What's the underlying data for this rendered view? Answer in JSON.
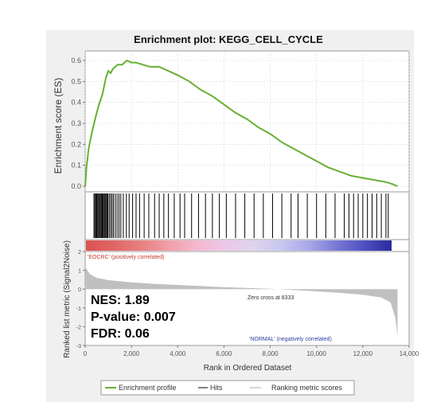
{
  "chart_data": {
    "type": "line",
    "title": "Enrichment plot: KEGG_CELL_CYCLE",
    "xlabel": "Rank in Ordered Dataset",
    "xlim": [
      0,
      14000
    ],
    "x_ticks": [
      0,
      2000,
      4000,
      6000,
      8000,
      10000,
      12000,
      14000
    ],
    "x_tick_labels": [
      "0",
      "2,000",
      "4,000",
      "6,000",
      "8,000",
      "10,000",
      "12,000",
      "14,000"
    ],
    "es_panel": {
      "ylabel": "Enrichment score (ES)",
      "ylim": [
        0,
        0.6
      ],
      "y_ticks": [
        0.0,
        0.1,
        0.2,
        0.3,
        0.4,
        0.5,
        0.6
      ],
      "y_tick_labels": [
        "0.0",
        "0.1",
        "0.2",
        "0.3",
        "0.4",
        "0.5",
        "0.6"
      ],
      "grid": true,
      "series": [
        {
          "name": "Enrichment profile",
          "color": "#66b032",
          "points": [
            [
              0,
              0.0
            ],
            [
              60,
              0.09
            ],
            [
              150,
              0.18
            ],
            [
              300,
              0.26
            ],
            [
              450,
              0.33
            ],
            [
              600,
              0.39
            ],
            [
              750,
              0.44
            ],
            [
              900,
              0.52
            ],
            [
              1000,
              0.55
            ],
            [
              1100,
              0.54
            ],
            [
              1200,
              0.56
            ],
            [
              1400,
              0.58
            ],
            [
              1600,
              0.58
            ],
            [
              1800,
              0.6
            ],
            [
              2000,
              0.59
            ],
            [
              2200,
              0.59
            ],
            [
              2500,
              0.58
            ],
            [
              2800,
              0.57
            ],
            [
              3200,
              0.57
            ],
            [
              3600,
              0.55
            ],
            [
              4000,
              0.53
            ],
            [
              4500,
              0.5
            ],
            [
              5000,
              0.46
            ],
            [
              5500,
              0.43
            ],
            [
              6000,
              0.39
            ],
            [
              6500,
              0.35
            ],
            [
              7000,
              0.32
            ],
            [
              7500,
              0.28
            ],
            [
              8000,
              0.25
            ],
            [
              8500,
              0.21
            ],
            [
              9000,
              0.18
            ],
            [
              9500,
              0.15
            ],
            [
              10000,
              0.12
            ],
            [
              10500,
              0.09
            ],
            [
              11000,
              0.07
            ],
            [
              11500,
              0.05
            ],
            [
              12000,
              0.04
            ],
            [
              12500,
              0.03
            ],
            [
              13000,
              0.02
            ],
            [
              13300,
              0.01
            ],
            [
              13500,
              0.0
            ]
          ]
        }
      ]
    },
    "hits": {
      "name": "Hits",
      "color": "#000000",
      "positions": [
        380,
        420,
        460,
        500,
        540,
        580,
        620,
        660,
        700,
        740,
        780,
        820,
        860,
        900,
        940,
        980,
        1040,
        1100,
        1160,
        1220,
        1300,
        1380,
        1460,
        1540,
        1650,
        1780,
        1900,
        2050,
        2200,
        2350,
        2550,
        2750,
        3000,
        3200,
        3400,
        3600,
        3850,
        4100,
        4300,
        4600,
        4900,
        5200,
        5500,
        5800,
        6100,
        6500,
        6900,
        7300,
        7700,
        8100,
        8500,
        8900,
        9200,
        9600,
        10000,
        10400,
        10800,
        11200,
        11400,
        11600,
        11800,
        12000,
        12200,
        12400,
        12600,
        12800,
        13000,
        13100
      ]
    },
    "ranking_bar": {
      "colors": [
        "#d9534f",
        "#e06666",
        "#e88080",
        "#f0a0a8",
        "#f4b8d0",
        "#ecc8e8",
        "#e0d4f0",
        "#c8c8f0",
        "#a8a8e8",
        "#7a7ad6",
        "#5050c0",
        "#2a2aa0"
      ]
    },
    "metric_panel": {
      "ylabel": "Ranked list metric (Signal2Noise)",
      "ylim": [
        -3,
        2
      ],
      "y_ticks": [
        2,
        1,
        0,
        -1,
        -2,
        -3
      ],
      "y_tick_labels": [
        "2",
        "1",
        "0",
        "-1",
        "-2",
        "-3"
      ],
      "series": [
        {
          "name": "Ranking metric scores",
          "color": "#c0c0c0",
          "points": [
            [
              0,
              1.2
            ],
            [
              200,
              0.8
            ],
            [
              500,
              0.6
            ],
            [
              1000,
              0.48
            ],
            [
              2000,
              0.36
            ],
            [
              3000,
              0.28
            ],
            [
              4000,
              0.22
            ],
            [
              5000,
              0.16
            ],
            [
              6000,
              0.1
            ],
            [
              7000,
              0.06
            ],
            [
              8000,
              0.02
            ],
            [
              8333,
              0.0
            ],
            [
              9000,
              -0.05
            ],
            [
              10000,
              -0.12
            ],
            [
              11000,
              -0.2
            ],
            [
              12000,
              -0.3
            ],
            [
              12800,
              -0.45
            ],
            [
              13200,
              -0.7
            ],
            [
              13400,
              -1.5
            ],
            [
              13500,
              -2.5
            ]
          ]
        }
      ],
      "annotations": {
        "positive": "'EOCRC' (positively correlated)",
        "negative": "'NORMAL' (negatively correlated)",
        "zero_cross": "Zero cross at 8333"
      }
    },
    "stats": {
      "nes": "NES: 1.89",
      "pvalue": "P-value: 0.007",
      "fdr": "FDR: 0.06"
    },
    "legend": {
      "placement": "bottom",
      "entries": [
        "Enrichment profile",
        "Hits",
        "Ranking metric scores"
      ],
      "colors": [
        "#66b032",
        "#555555",
        "#c8c8c8"
      ]
    }
  }
}
